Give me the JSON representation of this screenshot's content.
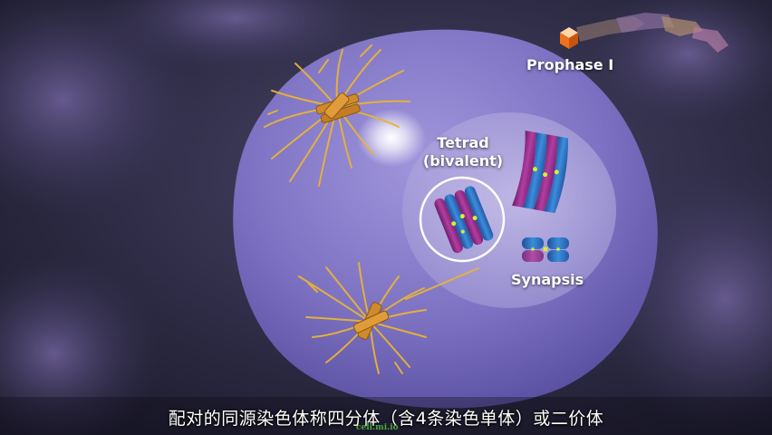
{
  "stage_label": "Prophase I",
  "tetrad_label": {
    "line1": "Tetrad",
    "line2": "(bivalent)"
  },
  "synapsis_label": "Synapsis",
  "caption": "配对的同源染色体称四分体（含4条染色单体）或二价体",
  "watermark": "cell.mi.io",
  "colors": {
    "cell": "#8e83d6",
    "nucleus": "#bdb5e0",
    "centrosome": "#d08a2a",
    "spindle_fiber": "#e7b338",
    "chromatid_magenta": "#a0308f",
    "chromatid_blue": "#2f78c8",
    "centromere": "#d8ec3a",
    "stage_marker": "#f2711c",
    "background": "#2a2840"
  },
  "icons": {
    "stage_progress": "stage-progress-arrow-icon"
  }
}
